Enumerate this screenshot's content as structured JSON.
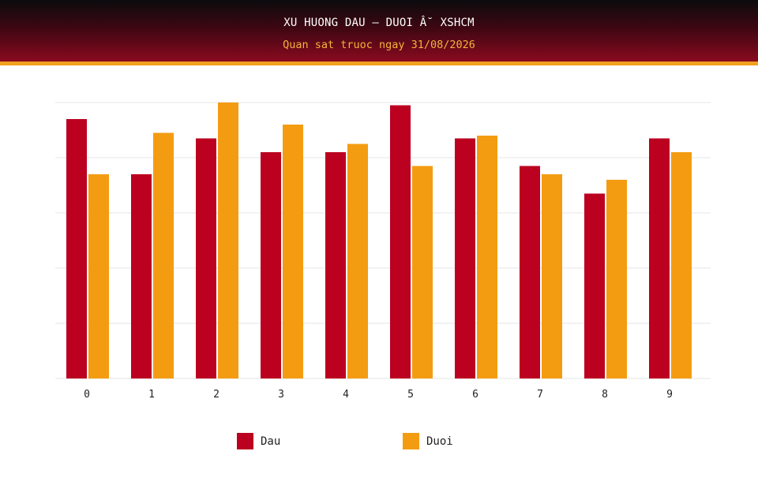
{
  "header": {
    "title": "XU HUONG DAU – DUOI Â˘ XSHCM",
    "subtitle": "Quan sat truoc ngay 31/08/2026"
  },
  "colors": {
    "dau": "#bb0020",
    "duoi": "#f39c12",
    "grid": "#e6e6e6"
  },
  "chart_data": {
    "type": "bar",
    "categories": [
      "0",
      "1",
      "2",
      "3",
      "4",
      "5",
      "6",
      "7",
      "8",
      "9"
    ],
    "series": [
      {
        "name": "Dau",
        "values": [
          94,
          74,
          87,
          82,
          82,
          99,
          87,
          77,
          67,
          87
        ]
      },
      {
        "name": "Duoi",
        "values": [
          74,
          89,
          100,
          92,
          85,
          77,
          88,
          74,
          72,
          82
        ]
      }
    ],
    "ylim": [
      0,
      100
    ],
    "grid": true,
    "legend_position": "bottom"
  },
  "legend": [
    {
      "label": "Dau"
    },
    {
      "label": "Duoi"
    }
  ]
}
